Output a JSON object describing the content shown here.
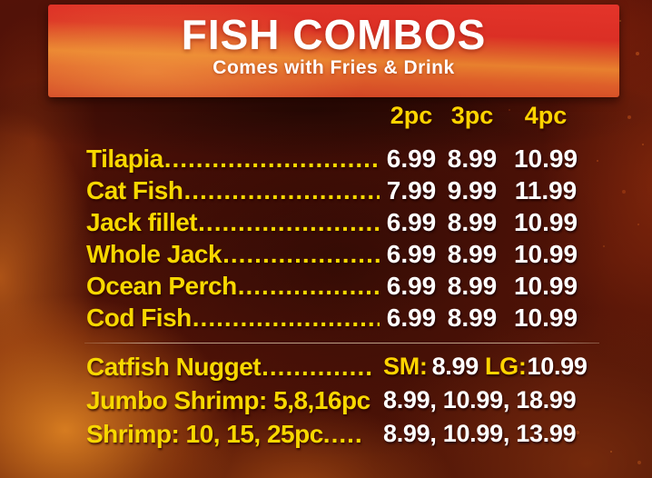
{
  "header": {
    "title": "FISH COMBOS",
    "subtitle": "Comes with Fries & Drink"
  },
  "size_columns": [
    "2pc",
    "3pc",
    "4pc"
  ],
  "combo_items": [
    {
      "name": "Tilapia",
      "dots": "......................................",
      "prices": [
        "6.99",
        "8.99",
        "10.99"
      ]
    },
    {
      "name": "Cat Fish",
      "dots": "......................................",
      "prices": [
        "7.99",
        "9.99",
        "11.99"
      ]
    },
    {
      "name": "Jack fillet",
      "dots": "......................................",
      "prices": [
        "6.99",
        "8.99",
        "10.99"
      ]
    },
    {
      "name": "Whole Jack",
      "dots": "......................................",
      "prices": [
        "6.99",
        "8.99",
        "10.99"
      ]
    },
    {
      "name": "Ocean Perch",
      "dots": "......................................",
      "prices": [
        "6.99",
        "8.99",
        "10.99"
      ]
    },
    {
      "name": "Cod Fish",
      "dots": "......................................",
      "prices": [
        "6.99",
        "8.99",
        "10.99"
      ]
    }
  ],
  "specials": {
    "catfish_nugget": {
      "name": "Catfish Nugget",
      "dots": "..............",
      "sm_label": "SM:",
      "sm_price": "8.99",
      "lg_label": "LG:",
      "lg_price": "10.99"
    },
    "jumbo_shrimp": {
      "name": "Jumbo Shrimp: 5,8,16pc",
      "prices": "8.99, 10.99, 18.99"
    },
    "shrimp": {
      "name": "Shrimp: 10, 15, 25pc",
      "dots": ".....",
      "prices": "8.99, 10.99, 13.99"
    }
  },
  "colors": {
    "item_yellow": "#f8d800",
    "header_yellow": "#ffd400",
    "price_white": "#ffffff",
    "banner_red": "#de3126",
    "banner_orange": "#e8802e",
    "background_maroon": "#4a1007",
    "divider_tan": "#d8c0a6"
  }
}
